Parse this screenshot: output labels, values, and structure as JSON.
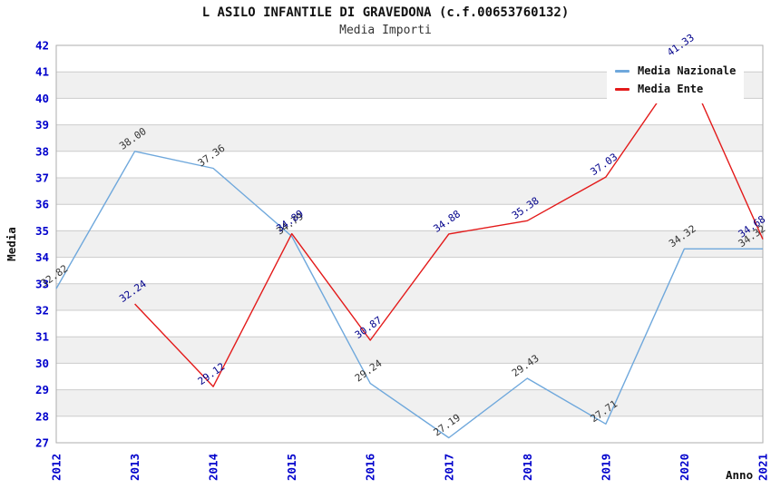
{
  "chart_data": {
    "type": "line",
    "title": "L ASILO INFANTILE DI GRAVEDONA (c.f.00653760132)",
    "subtitle": "Media Importi",
    "xlabel": "Anno",
    "ylabel": "Media",
    "categories": [
      "2012",
      "2013",
      "2014",
      "2015",
      "2016",
      "2017",
      "2018",
      "2019",
      "2020",
      "2021"
    ],
    "ylim": [
      27,
      42
    ],
    "ytick_step": 1,
    "grid": "horizontal gridlines with alternating shaded bands",
    "legend_position": "top-right",
    "series": [
      {
        "name": "Media Nazionale",
        "color": "#6FA8DC",
        "label_color": "#333333",
        "values": [
          32.82,
          38.0,
          37.36,
          34.79,
          29.24,
          27.19,
          29.43,
          27.71,
          34.32,
          34.32
        ]
      },
      {
        "name": "Media Ente",
        "color": "#E31A1A",
        "label_color": "#00008B",
        "values": [
          null,
          32.24,
          29.12,
          34.89,
          30.87,
          34.88,
          35.38,
          37.03,
          41.33,
          34.68
        ]
      }
    ],
    "colors": {
      "axis_tick_labels": "#0000CC",
      "axis_titles": "#111111",
      "gridline": "#CCCCCC",
      "plot_border": "#ADADAD",
      "band_shaded": "#F0F0F0",
      "band_plain": "#FFFFFF"
    }
  }
}
